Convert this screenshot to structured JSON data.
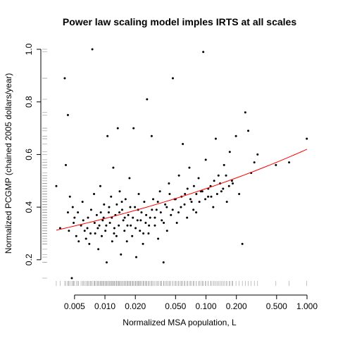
{
  "chart_data": {
    "type": "scatter",
    "title": "Power law scaling model imples IRTS at all scales",
    "xlabel": "Normalized MSA population, L",
    "ylabel": "Normalized PCGMP (chained 2005 dollars/year)",
    "xscale": "log",
    "xlim": [
      0.003,
      1.0
    ],
    "ylim": [
      0.13,
      1.0
    ],
    "x_ticks": [
      0.005,
      0.01,
      0.02,
      0.05,
      0.1,
      0.2,
      0.5,
      1.0
    ],
    "x_tick_labels": [
      "0.005",
      "0.010",
      "0.020",
      "0.050",
      "0.100",
      "0.200",
      "0.500",
      "1.000"
    ],
    "y_ticks": [
      0.2,
      0.4,
      0.6,
      0.8,
      1.0
    ],
    "y_tick_labels": [
      "0.2",
      "0.4",
      "0.6",
      "0.8",
      "1.0"
    ],
    "grid": false,
    "rug": true,
    "fit_line": {
      "color": "#ff0000",
      "a": 0.62,
      "b": 0.12
    },
    "points": [
      [
        0.0033,
        0.48
      ],
      [
        0.0036,
        0.32
      ],
      [
        0.004,
        0.89
      ],
      [
        0.0043,
        0.75
      ],
      [
        0.0041,
        0.56
      ],
      [
        0.0044,
        0.31
      ],
      [
        0.0047,
        0.13
      ],
      [
        0.0043,
        0.38
      ],
      [
        0.0045,
        0.44
      ],
      [
        0.0048,
        0.4
      ],
      [
        0.005,
        0.36
      ],
      [
        0.0052,
        0.29
      ],
      [
        0.0055,
        0.27
      ],
      [
        0.0058,
        0.33
      ],
      [
        0.006,
        0.42
      ],
      [
        0.0063,
        0.31
      ],
      [
        0.0065,
        0.28
      ],
      [
        0.0068,
        0.36
      ],
      [
        0.007,
        0.26
      ],
      [
        0.0073,
        0.39
      ],
      [
        0.0075,
        1.0
      ],
      [
        0.0078,
        0.45
      ],
      [
        0.008,
        0.3
      ],
      [
        0.0083,
        0.37
      ],
      [
        0.0086,
        0.24
      ],
      [
        0.0088,
        0.33
      ],
      [
        0.009,
        0.48
      ],
      [
        0.0093,
        0.29
      ],
      [
        0.0095,
        0.35
      ],
      [
        0.0098,
        0.41
      ],
      [
        0.0101,
        0.31
      ],
      [
        0.0104,
        0.19
      ],
      [
        0.0106,
        0.67
      ],
      [
        0.0109,
        0.38
      ],
      [
        0.0112,
        0.34
      ],
      [
        0.0115,
        0.44
      ],
      [
        0.0118,
        0.27
      ],
      [
        0.0121,
        0.55
      ],
      [
        0.0124,
        0.32
      ],
      [
        0.0127,
        0.37
      ],
      [
        0.013,
        0.29
      ],
      [
        0.0134,
        0.7
      ],
      [
        0.0137,
        0.33
      ],
      [
        0.014,
        0.46
      ],
      [
        0.0144,
        0.22
      ],
      [
        0.0148,
        0.39
      ],
      [
        0.0152,
        0.35
      ],
      [
        0.0156,
        0.31
      ],
      [
        0.016,
        0.43
      ],
      [
        0.0165,
        0.27
      ],
      [
        0.017,
        0.37
      ],
      [
        0.0175,
        0.51
      ],
      [
        0.018,
        0.33
      ],
      [
        0.0186,
        0.29
      ],
      [
        0.0192,
        0.7
      ],
      [
        0.0198,
        0.4
      ],
      [
        0.0204,
        0.21
      ],
      [
        0.021,
        0.35
      ],
      [
        0.0216,
        0.45
      ],
      [
        0.0222,
        0.31
      ],
      [
        0.023,
        0.38
      ],
      [
        0.0238,
        0.26
      ],
      [
        0.0245,
        0.42
      ],
      [
        0.0253,
        0.34
      ],
      [
        0.0261,
        0.81
      ],
      [
        0.027,
        0.3
      ],
      [
        0.028,
        0.36
      ],
      [
        0.029,
        0.67
      ],
      [
        0.03,
        0.43
      ],
      [
        0.0312,
        0.33
      ],
      [
        0.0324,
        0.39
      ],
      [
        0.0336,
        0.28
      ],
      [
        0.035,
        0.46
      ],
      [
        0.0365,
        0.35
      ],
      [
        0.038,
        0.19
      ],
      [
        0.0395,
        0.41
      ],
      [
        0.0412,
        0.31
      ],
      [
        0.043,
        0.49
      ],
      [
        0.045,
        0.37
      ],
      [
        0.047,
        0.89
      ],
      [
        0.049,
        0.43
      ],
      [
        0.0515,
        0.34
      ],
      [
        0.054,
        0.52
      ],
      [
        0.0565,
        0.4
      ],
      [
        0.059,
        0.64
      ],
      [
        0.062,
        0.45
      ],
      [
        0.065,
        0.36
      ],
      [
        0.0685,
        0.55
      ],
      [
        0.072,
        0.42
      ],
      [
        0.076,
        0.48
      ],
      [
        0.08,
        0.38
      ],
      [
        0.0845,
        0.51
      ],
      [
        0.089,
        0.46
      ],
      [
        0.094,
        0.99
      ],
      [
        0.0995,
        0.58
      ],
      [
        0.105,
        0.44
      ],
      [
        0.111,
        0.48
      ],
      [
        0.118,
        0.4
      ],
      [
        0.125,
        0.66
      ],
      [
        0.133,
        0.52
      ],
      [
        0.142,
        0.46
      ],
      [
        0.151,
        0.56
      ],
      [
        0.161,
        0.42
      ],
      [
        0.172,
        0.61
      ],
      [
        0.184,
        0.49
      ],
      [
        0.198,
        0.67
      ],
      [
        0.213,
        0.45
      ],
      [
        0.229,
        0.26
      ],
      [
        0.245,
        0.76
      ],
      [
        0.262,
        0.69
      ],
      [
        0.28,
        0.53
      ],
      [
        0.301,
        0.57
      ],
      [
        0.324,
        0.6
      ],
      [
        0.492,
        0.56
      ],
      [
        0.665,
        0.57
      ],
      [
        0.995,
        0.66
      ],
      [
        0.0049,
        0.34
      ],
      [
        0.0054,
        0.38
      ],
      [
        0.0061,
        0.35
      ],
      [
        0.0067,
        0.32
      ],
      [
        0.0072,
        0.3
      ],
      [
        0.0079,
        0.34
      ],
      [
        0.0085,
        0.32
      ],
      [
        0.0091,
        0.38
      ],
      [
        0.0097,
        0.36
      ],
      [
        0.0103,
        0.33
      ],
      [
        0.011,
        0.4
      ],
      [
        0.0117,
        0.36
      ],
      [
        0.0123,
        0.3
      ],
      [
        0.0131,
        0.41
      ],
      [
        0.0139,
        0.38
      ],
      [
        0.0147,
        0.42
      ],
      [
        0.0157,
        0.36
      ],
      [
        0.0167,
        0.33
      ],
      [
        0.0178,
        0.4
      ],
      [
        0.0189,
        0.36
      ],
      [
        0.0201,
        0.32
      ],
      [
        0.0213,
        0.39
      ],
      [
        0.0226,
        0.35
      ],
      [
        0.024,
        0.3
      ],
      [
        0.0256,
        0.37
      ],
      [
        0.0273,
        0.33
      ],
      [
        0.0292,
        0.39
      ],
      [
        0.0312,
        0.36
      ],
      [
        0.0334,
        0.42
      ],
      [
        0.0357,
        0.38
      ],
      [
        0.0382,
        0.34
      ],
      [
        0.0409,
        0.4
      ],
      [
        0.0437,
        0.45
      ],
      [
        0.0468,
        0.39
      ],
      [
        0.05,
        0.43
      ],
      [
        0.0535,
        0.38
      ],
      [
        0.0573,
        0.44
      ],
      [
        0.0613,
        0.41
      ],
      [
        0.0656,
        0.47
      ],
      [
        0.0702,
        0.43
      ],
      [
        0.0751,
        0.39
      ],
      [
        0.0803,
        0.45
      ],
      [
        0.086,
        0.42
      ],
      [
        0.092,
        0.46
      ],
      [
        0.0985,
        0.43
      ],
      [
        0.1053,
        0.47
      ],
      [
        0.1127,
        0.44
      ],
      [
        0.1205,
        0.5
      ],
      [
        0.129,
        0.45
      ],
      [
        0.138,
        0.49
      ],
      [
        0.1477,
        0.47
      ],
      [
        0.158,
        0.52
      ],
      [
        0.169,
        0.48
      ],
      [
        0.1809,
        0.5
      ]
    ]
  }
}
